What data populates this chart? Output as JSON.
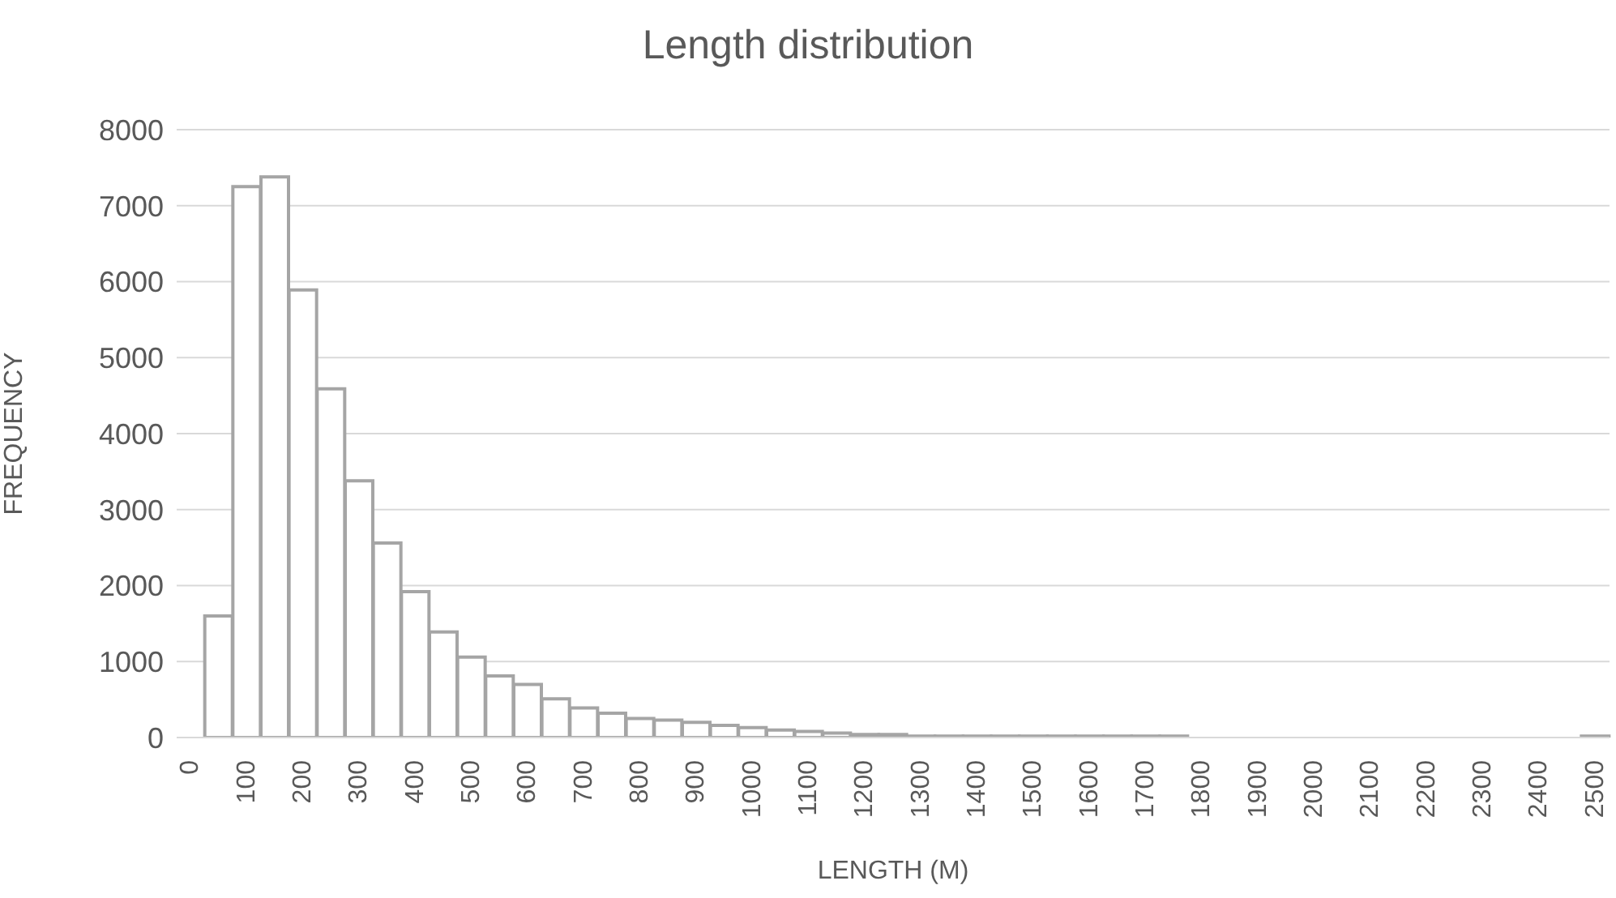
{
  "chart_data": {
    "type": "bar",
    "title": "Length distribution",
    "xlabel": "LENGTH (M)",
    "ylabel": "FREQUENCY",
    "categories": [
      "0",
      null,
      "100",
      null,
      "200",
      null,
      "300",
      null,
      "400",
      null,
      "500",
      null,
      "600",
      null,
      "700",
      null,
      "800",
      null,
      "900",
      null,
      "1000",
      null,
      "1100",
      null,
      "1200",
      null,
      "1300",
      null,
      "1400",
      null,
      "1500",
      null,
      "1600",
      null,
      "1700",
      null,
      "1800",
      null,
      "1900",
      null,
      "2000",
      null,
      "2100",
      null,
      "2200",
      null,
      "2300",
      null,
      "2400",
      null,
      "2500"
    ],
    "values": [
      0,
      1600,
      7250,
      7380,
      5890,
      4590,
      3380,
      2560,
      1920,
      1390,
      1060,
      810,
      700,
      510,
      390,
      320,
      250,
      230,
      200,
      160,
      130,
      100,
      80,
      60,
      40,
      40,
      20,
      20,
      20,
      20,
      20,
      20,
      20,
      20,
      20,
      20,
      0,
      0,
      0,
      0,
      0,
      0,
      0,
      0,
      0,
      0,
      0,
      0,
      0,
      0,
      20
    ],
    "color": "#a5a5a5",
    "ylim": [
      0,
      8000
    ],
    "yticks": [
      0,
      1000,
      2000,
      3000,
      4000,
      5000,
      6000,
      7000,
      8000
    ],
    "grid": "y"
  }
}
